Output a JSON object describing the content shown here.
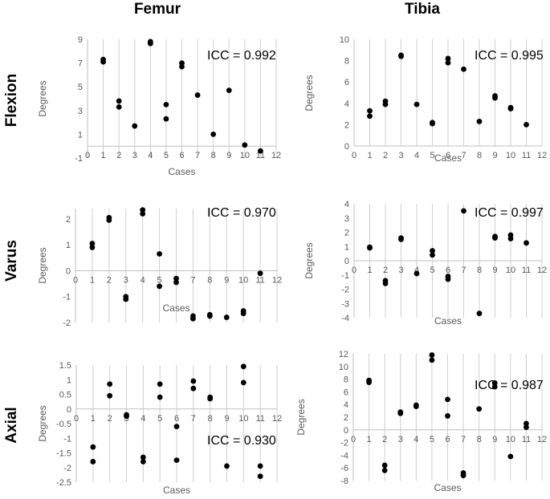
{
  "column_headers": [
    "Femur",
    "Tibia"
  ],
  "row_headers": [
    "Flexion",
    "Varus",
    "Axial"
  ],
  "chart_data": [
    {
      "id": "flexion-femur",
      "type": "scatter",
      "title": "",
      "xlabel": "Cases",
      "ylabel": "Degrees",
      "icc": "ICC = 0.992",
      "xlim": [
        0,
        12
      ],
      "xticks": [
        0,
        1,
        2,
        3,
        4,
        5,
        6,
        7,
        8,
        9,
        10,
        11,
        12
      ],
      "xtick_labels": [
        "0",
        "1",
        "2",
        "3",
        "4",
        "5",
        "6",
        "7",
        "8",
        "9",
        "10",
        "11",
        "12"
      ],
      "ylim": [
        -1,
        9
      ],
      "yticks": [
        -1,
        1,
        3,
        5,
        7,
        9
      ],
      "ytick_labels": [
        "-1",
        "1",
        "3",
        "5",
        "7",
        "9"
      ],
      "grid": "vertical",
      "points": [
        [
          1,
          7.3
        ],
        [
          1,
          7.1
        ],
        [
          2,
          3.8
        ],
        [
          2,
          3.3
        ],
        [
          3,
          1.7
        ],
        [
          4,
          8.8
        ],
        [
          4,
          8.65
        ],
        [
          5,
          3.5
        ],
        [
          5,
          2.3
        ],
        [
          6,
          7.0
        ],
        [
          6,
          6.7
        ],
        [
          7,
          4.3
        ],
        [
          8,
          1.0
        ],
        [
          9,
          4.7
        ],
        [
          10,
          0.1
        ],
        [
          11,
          -0.4
        ]
      ]
    },
    {
      "id": "flexion-tibia",
      "type": "scatter",
      "title": "",
      "xlabel": "Cases",
      "ylabel": "Degrees",
      "icc": "ICC = 0.995",
      "xlim": [
        0,
        12
      ],
      "xticks": [
        0,
        1,
        2,
        3,
        4,
        5,
        6,
        7,
        8,
        9,
        10,
        11,
        12
      ],
      "xtick_labels": [
        "0",
        "1",
        "2",
        "3",
        "4",
        "5",
        "6",
        "7",
        "8",
        "9",
        "10",
        "11",
        "12"
      ],
      "ylim": [
        0,
        10
      ],
      "yticks": [
        0,
        2,
        4,
        6,
        8,
        10
      ],
      "ytick_labels": [
        "0",
        "2",
        "4",
        "6",
        "8",
        "10"
      ],
      "grid": "vertical",
      "points": [
        [
          1,
          3.3
        ],
        [
          1,
          2.8
        ],
        [
          2,
          4.2
        ],
        [
          2,
          3.9
        ],
        [
          3,
          8.5
        ],
        [
          3,
          8.4
        ],
        [
          4,
          3.9
        ],
        [
          5,
          2.2
        ],
        [
          5,
          2.1
        ],
        [
          6,
          8.2
        ],
        [
          6,
          7.8
        ],
        [
          7,
          7.2
        ],
        [
          8,
          2.3
        ],
        [
          9,
          4.7
        ],
        [
          9,
          4.5
        ],
        [
          10,
          3.6
        ],
        [
          10,
          3.5
        ],
        [
          11,
          2.0
        ]
      ]
    },
    {
      "id": "varus-femur",
      "type": "scatter",
      "title": "",
      "xlabel": "Cases",
      "ylabel": "Degrees",
      "icc": "ICC = 0.970",
      "xlim": [
        0,
        12
      ],
      "xticks": [
        0,
        1,
        2,
        3,
        4,
        5,
        6,
        7,
        8,
        9,
        10,
        11,
        12
      ],
      "xtick_labels": [
        "0",
        "1",
        "2",
        "3",
        "4",
        "5",
        "6",
        "7",
        "8",
        "9",
        "10",
        "11",
        "12"
      ],
      "ylim": [
        -2,
        2.4
      ],
      "yticks": [
        -2,
        -1,
        0,
        1,
        2
      ],
      "ytick_labels": [
        "-2",
        "-1",
        "0",
        "1",
        "2"
      ],
      "grid": "vertical",
      "points": [
        [
          1,
          1.05
        ],
        [
          1,
          0.9
        ],
        [
          2,
          2.05
        ],
        [
          2,
          1.95
        ],
        [
          3,
          -1.0
        ],
        [
          3,
          -1.1
        ],
        [
          4,
          2.35
        ],
        [
          4,
          2.2
        ],
        [
          5,
          0.65
        ],
        [
          5,
          -0.6
        ],
        [
          6,
          -0.3
        ],
        [
          6,
          -0.45
        ],
        [
          7,
          -1.75
        ],
        [
          7,
          -1.85
        ],
        [
          8,
          -1.7
        ],
        [
          8,
          -1.75
        ],
        [
          9,
          -1.8
        ],
        [
          10,
          -1.55
        ],
        [
          10,
          -1.65
        ],
        [
          11,
          -0.1
        ]
      ]
    },
    {
      "id": "varus-tibia",
      "type": "scatter",
      "title": "",
      "xlabel": "Cases",
      "ylabel": "Degrees",
      "icc": "ICC = 0.997",
      "xlim": [
        0,
        12
      ],
      "xticks": [
        0,
        1,
        2,
        3,
        4,
        5,
        6,
        7,
        8,
        9,
        10,
        11,
        12
      ],
      "xtick_labels": [
        "0",
        "1",
        "2",
        "3",
        "4",
        "5",
        "6",
        "7",
        "8",
        "9",
        "10",
        "11",
        "12"
      ],
      "ylim": [
        -4,
        4
      ],
      "yticks": [
        -4,
        -3,
        -2,
        -1,
        0,
        1,
        2,
        3,
        4
      ],
      "ytick_labels": [
        "-4",
        "-3",
        "-2",
        "-1",
        "0",
        "1",
        "2",
        "3",
        "4"
      ],
      "grid": "vertical",
      "points": [
        [
          1,
          0.95
        ],
        [
          1,
          0.9
        ],
        [
          2,
          -1.4
        ],
        [
          2,
          -1.6
        ],
        [
          3,
          1.6
        ],
        [
          3,
          1.5
        ],
        [
          4,
          -0.9
        ],
        [
          5,
          0.7
        ],
        [
          5,
          0.4
        ],
        [
          6,
          -1.1
        ],
        [
          6,
          -1.3
        ],
        [
          7,
          3.5
        ],
        [
          8,
          -3.7
        ],
        [
          9,
          1.7
        ],
        [
          9,
          1.6
        ],
        [
          10,
          1.8
        ],
        [
          10,
          1.55
        ],
        [
          11,
          1.25
        ]
      ]
    },
    {
      "id": "axial-femur",
      "type": "scatter",
      "title": "",
      "xlabel": "Cases",
      "ylabel": "Degrees",
      "icc": "ICC = 0.930",
      "xlim": [
        0,
        12
      ],
      "xticks": [
        0,
        1,
        2,
        3,
        4,
        5,
        6,
        7,
        8,
        9,
        10,
        11,
        12
      ],
      "xtick_labels": [
        "0",
        "1",
        "2",
        "3",
        "4",
        "5",
        "6",
        "7",
        "8",
        "9",
        "10",
        "11",
        "12"
      ],
      "ylim": [
        -2.5,
        1.5
      ],
      "yticks": [
        -2.5,
        -2,
        -1.5,
        -1,
        -0.5,
        0,
        0.5,
        1,
        1.5
      ],
      "ytick_labels": [
        "-2.5",
        "-2",
        "-1.5",
        "-1",
        "-0.5",
        "0",
        "0.5",
        "1",
        "1.5"
      ],
      "grid": "vertical",
      "points": [
        [
          1,
          -1.3
        ],
        [
          1,
          -1.8
        ],
        [
          2,
          0.85
        ],
        [
          2,
          0.45
        ],
        [
          3,
          -0.2
        ],
        [
          3,
          -0.25
        ],
        [
          4,
          -1.65
        ],
        [
          4,
          -1.8
        ],
        [
          5,
          0.85
        ],
        [
          5,
          0.4
        ],
        [
          6,
          -0.6
        ],
        [
          6,
          -1.75
        ],
        [
          7,
          0.95
        ],
        [
          7,
          0.7
        ],
        [
          8,
          0.4
        ],
        [
          8,
          0.35
        ],
        [
          9,
          -1.95
        ],
        [
          10,
          1.45
        ],
        [
          10,
          0.9
        ],
        [
          11,
          -1.95
        ],
        [
          11,
          -2.3
        ]
      ]
    },
    {
      "id": "axial-tibia",
      "type": "scatter",
      "title": "",
      "xlabel": "Cases",
      "ylabel": "Degrees",
      "icc": "ICC = 0.987",
      "xlim": [
        0,
        12
      ],
      "xticks": [
        0,
        1,
        2,
        3,
        4,
        5,
        6,
        7,
        8,
        9,
        10,
        11,
        12
      ],
      "xtick_labels": [
        "0",
        "1",
        "2",
        "3",
        "4",
        "5",
        "6",
        "7",
        "8",
        "9",
        "10",
        "11",
        "12"
      ],
      "ylim": [
        -8,
        12
      ],
      "yticks": [
        -8,
        -6,
        -4,
        -2,
        0,
        2,
        4,
        6,
        8,
        10,
        12
      ],
      "ytick_labels": [
        "-8",
        "-6",
        "-4",
        "-2",
        "0",
        "2",
        "4",
        "6",
        "8",
        "10",
        "12"
      ],
      "grid": "vertical",
      "points": [
        [
          1,
          7.8
        ],
        [
          1,
          7.5
        ],
        [
          2,
          -5.6
        ],
        [
          2,
          -6.4
        ],
        [
          3,
          2.8
        ],
        [
          3,
          2.6
        ],
        [
          4,
          3.9
        ],
        [
          4,
          3.7
        ],
        [
          5,
          11.8
        ],
        [
          5,
          11.0
        ],
        [
          6,
          4.8
        ],
        [
          6,
          2.2
        ],
        [
          7,
          -6.8
        ],
        [
          7,
          -7.2
        ],
        [
          8,
          3.3
        ],
        [
          9,
          7.4
        ],
        [
          9,
          6.8
        ],
        [
          10,
          -4.2
        ],
        [
          11,
          1.0
        ],
        [
          11,
          0.4
        ]
      ]
    }
  ],
  "colors": {
    "point": "#000000",
    "grid": "#cfcfcf",
    "axis": "#bfbfbf",
    "tick_text": "#595959",
    "axis_label": "#595959",
    "header": "#000000"
  }
}
